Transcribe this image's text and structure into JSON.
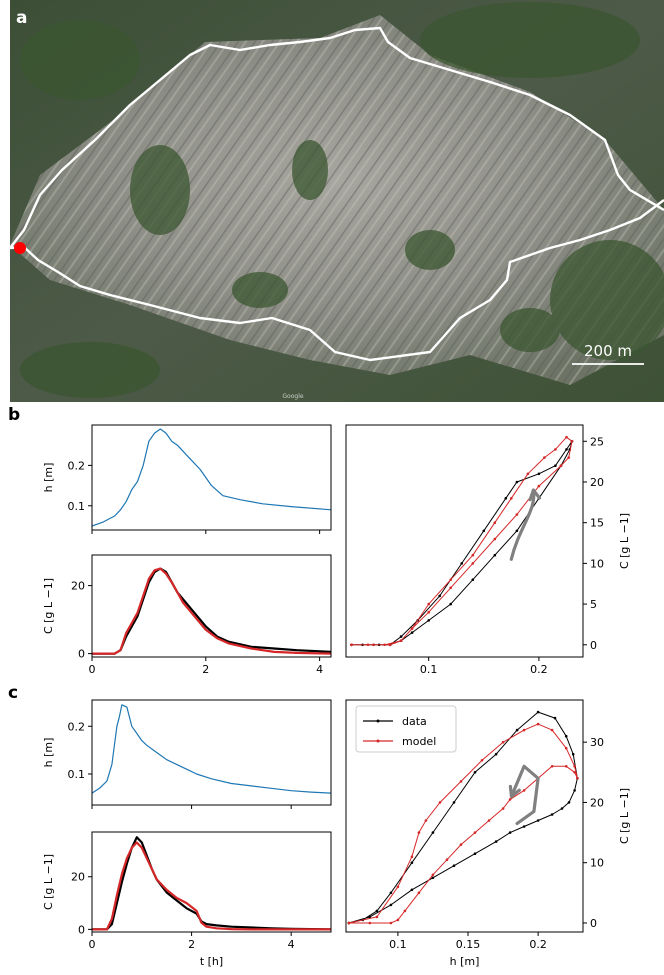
{
  "panel_labels": {
    "a": "a",
    "b": "b",
    "c": "c"
  },
  "map": {
    "scale_label": "200 m",
    "watermark": "Google",
    "colors": {
      "boundary": "#ffffff",
      "outlet": "#ff0000"
    }
  },
  "colors": {
    "h_line": "#1f77b4",
    "data": "#000000",
    "model": "#d62728",
    "arrow": "#808080"
  },
  "legend": {
    "data": "data",
    "model": "model"
  },
  "chart_data": [
    {
      "id": "b_h",
      "type": "line",
      "xlim": [
        0,
        4.2
      ],
      "ylim": [
        0.04,
        0.3
      ],
      "xticks": [
        0,
        2,
        4
      ],
      "yticks": [
        0.1,
        0.2
      ],
      "ylabel": "h [m]",
      "xlabel": "",
      "series": [
        {
          "color": "h_line",
          "x": [
            0,
            0.2,
            0.4,
            0.5,
            0.6,
            0.7,
            0.8,
            0.9,
            1.0,
            1.1,
            1.2,
            1.3,
            1.4,
            1.5,
            1.7,
            1.9,
            2.1,
            2.3,
            2.6,
            3.0,
            3.5,
            4.2
          ],
          "y": [
            0.05,
            0.06,
            0.075,
            0.09,
            0.11,
            0.14,
            0.16,
            0.2,
            0.26,
            0.28,
            0.29,
            0.28,
            0.26,
            0.25,
            0.22,
            0.19,
            0.15,
            0.125,
            0.115,
            0.105,
            0.098,
            0.09
          ]
        }
      ]
    },
    {
      "id": "b_C",
      "type": "line",
      "xlim": [
        0,
        4.2
      ],
      "ylim": [
        -1,
        29
      ],
      "xticks": [
        0,
        2,
        4
      ],
      "yticks": [
        0,
        20
      ],
      "ylabel": "C [g L −1]",
      "xlabel": "",
      "series": [
        {
          "color": "data",
          "width": 2.2,
          "x": [
            0,
            0.4,
            0.5,
            0.6,
            0.7,
            0.8,
            0.9,
            1.0,
            1.1,
            1.2,
            1.3,
            1.4,
            1.5,
            1.6,
            1.8,
            2.0,
            2.2,
            2.4,
            2.8,
            3.2,
            3.6,
            4.2
          ],
          "y": [
            0,
            0,
            1,
            5,
            8,
            11,
            16,
            21,
            24,
            25,
            24,
            21,
            18,
            16,
            12,
            8,
            5,
            3.5,
            2,
            1.5,
            1,
            0.5
          ]
        },
        {
          "color": "model",
          "width": 2.2,
          "x": [
            0,
            0.4,
            0.5,
            0.6,
            0.7,
            0.8,
            0.9,
            1.0,
            1.1,
            1.2,
            1.3,
            1.4,
            1.5,
            1.6,
            1.8,
            2.0,
            2.2,
            2.4,
            2.8,
            3.2,
            3.6,
            4.2
          ],
          "y": [
            0,
            0,
            1,
            6,
            9,
            12,
            17,
            22,
            24.5,
            25,
            23.5,
            21,
            18,
            15,
            11,
            7,
            4.5,
            3,
            1.5,
            0.5,
            0.2,
            0
          ]
        }
      ]
    },
    {
      "id": "b_hyst",
      "type": "line",
      "xlim": [
        0.025,
        0.24
      ],
      "ylim": [
        -1.5,
        27
      ],
      "xticks": [
        0.1,
        0.2
      ],
      "yticks": [
        0,
        5,
        10,
        15,
        20,
        25
      ],
      "ylabel": "C [g L −1]",
      "xlabel": "",
      "arrow": {
        "x": [
          0.175,
          0.182,
          0.198,
          0.195
        ],
        "y": [
          10.5,
          14.5,
          16.5,
          19
        ]
      },
      "series": [
        {
          "color": "data",
          "width": 1,
          "markers": true,
          "x": [
            0.03,
            0.05,
            0.065,
            0.075,
            0.09,
            0.11,
            0.13,
            0.15,
            0.17,
            0.18,
            0.2,
            0.215,
            0.225,
            0.23,
            0.228,
            0.22,
            0.2,
            0.18,
            0.16,
            0.14,
            0.12,
            0.1,
            0.085,
            0.075,
            0.065,
            0.055,
            0.04,
            0.03
          ],
          "y": [
            0,
            0,
            0,
            1,
            3,
            6,
            10,
            14,
            18,
            20,
            21,
            22,
            24,
            25,
            24,
            22,
            18,
            14,
            11,
            8,
            5,
            3,
            1.5,
            0.5,
            0,
            0,
            0,
            0
          ]
        },
        {
          "color": "model",
          "width": 1,
          "markers": true,
          "x": [
            0.03,
            0.05,
            0.065,
            0.075,
            0.085,
            0.1,
            0.12,
            0.14,
            0.16,
            0.175,
            0.19,
            0.205,
            0.215,
            0.225,
            0.23,
            0.227,
            0.22,
            0.2,
            0.18,
            0.16,
            0.14,
            0.12,
            0.1,
            0.085,
            0.075,
            0.06,
            0.045,
            0.03
          ],
          "y": [
            0,
            0,
            0,
            0.5,
            2,
            5,
            8,
            11,
            15,
            18,
            21,
            23,
            24,
            25.5,
            25,
            23,
            22,
            19.5,
            16,
            13,
            10,
            7,
            4,
            2,
            0.5,
            0,
            0,
            0
          ]
        }
      ]
    },
    {
      "id": "c_h",
      "type": "line",
      "xlim": [
        0,
        4.8
      ],
      "ylim": [
        0.035,
        0.255
      ],
      "xticks": [
        0,
        2,
        4
      ],
      "yticks": [
        0.1,
        0.2
      ],
      "ylabel": "h [m]",
      "xlabel": "",
      "series": [
        {
          "color": "h_line",
          "x": [
            0,
            0.15,
            0.3,
            0.4,
            0.5,
            0.55,
            0.6,
            0.7,
            0.8,
            0.9,
            1.0,
            1.1,
            1.3,
            1.5,
            1.7,
            1.9,
            2.1,
            2.4,
            2.8,
            3.2,
            3.6,
            4.0,
            4.4,
            4.8
          ],
          "y": [
            0.06,
            0.07,
            0.085,
            0.12,
            0.2,
            0.22,
            0.245,
            0.24,
            0.2,
            0.185,
            0.17,
            0.16,
            0.145,
            0.13,
            0.12,
            0.11,
            0.1,
            0.09,
            0.08,
            0.075,
            0.07,
            0.065,
            0.062,
            0.06
          ]
        }
      ]
    },
    {
      "id": "c_C",
      "type": "line",
      "xlim": [
        0,
        4.8
      ],
      "ylim": [
        -1,
        37
      ],
      "xticks": [
        0,
        2,
        4
      ],
      "yticks": [
        0,
        20
      ],
      "ylabel": "C [g L −1]",
      "xlabel": "t [h]",
      "series": [
        {
          "color": "data",
          "width": 2.2,
          "x": [
            0,
            0.3,
            0.4,
            0.5,
            0.6,
            0.7,
            0.8,
            0.9,
            1.0,
            1.1,
            1.2,
            1.3,
            1.5,
            1.7,
            1.9,
            2.1,
            2.2,
            2.3,
            2.5,
            2.8,
            3.2,
            3.6,
            4.0,
            4.8
          ],
          "y": [
            0,
            0,
            2,
            10,
            18,
            25,
            31,
            35,
            33,
            28,
            23,
            19,
            14,
            11,
            8,
            6,
            3,
            2,
            1.5,
            1,
            0.7,
            0.4,
            0.2,
            0
          ]
        },
        {
          "color": "model",
          "width": 2.2,
          "x": [
            0,
            0.3,
            0.4,
            0.5,
            0.6,
            0.7,
            0.8,
            0.9,
            1.0,
            1.1,
            1.2,
            1.3,
            1.5,
            1.7,
            1.9,
            2.1,
            2.2,
            2.3,
            2.5,
            2.8,
            3.2,
            3.6,
            4.0,
            4.8
          ],
          "y": [
            0,
            0,
            4,
            13,
            21,
            27,
            31,
            33,
            31,
            27,
            23,
            19,
            15,
            12,
            10,
            7,
            2.5,
            1,
            0.4,
            0.1,
            0,
            0,
            0,
            0
          ]
        }
      ]
    },
    {
      "id": "c_hyst",
      "type": "line",
      "xlim": [
        0.063,
        0.232
      ],
      "ylim": [
        -1.5,
        37
      ],
      "xticks": [
        0.1,
        0.15,
        0.2
      ],
      "yticks": [
        0,
        10,
        20,
        30
      ],
      "ylabel": "C [g L −1]",
      "xlabel": "h [m]",
      "arrow": {
        "x": [
          0.185,
          0.197,
          0.2,
          0.19,
          0.181
        ],
        "y": [
          16.5,
          18.5,
          24,
          26,
          21
        ]
      },
      "series": [
        {
          "color": "data",
          "width": 1,
          "markers": true,
          "x": [
            0.065,
            0.075,
            0.085,
            0.095,
            0.11,
            0.125,
            0.14,
            0.155,
            0.17,
            0.185,
            0.2,
            0.212,
            0.22,
            0.225,
            0.228,
            0.226,
            0.222,
            0.217,
            0.21,
            0.2,
            0.19,
            0.18,
            0.17,
            0.155,
            0.14,
            0.125,
            0.11,
            0.095,
            0.08,
            0.065
          ],
          "y": [
            0,
            0.5,
            2,
            5,
            10,
            15,
            20,
            25,
            28,
            32,
            35,
            34,
            31,
            28,
            24,
            22,
            20,
            19,
            18,
            17,
            16,
            15,
            13.5,
            11.5,
            9.5,
            7.5,
            5.5,
            3,
            1,
            0
          ]
        },
        {
          "color": "model",
          "width": 1,
          "markers": true,
          "x": [
            0.065,
            0.08,
            0.095,
            0.1,
            0.105,
            0.115,
            0.125,
            0.135,
            0.145,
            0.155,
            0.165,
            0.175,
            0.18,
            0.19,
            0.2,
            0.21,
            0.22,
            0.226,
            0.228,
            0.226,
            0.22,
            0.21,
            0.2,
            0.19,
            0.175,
            0.16,
            0.145,
            0.13,
            0.12,
            0.115,
            0.11,
            0.1,
            0.085,
            0.065
          ],
          "y": [
            0,
            0,
            0,
            0.5,
            2,
            5,
            8,
            10.5,
            13,
            15,
            17,
            19,
            20.5,
            22,
            24,
            26,
            26,
            25,
            24,
            26,
            29,
            32,
            33,
            32,
            30,
            27,
            23.5,
            20,
            17,
            15,
            11,
            6,
            1,
            0
          ]
        }
      ]
    }
  ]
}
